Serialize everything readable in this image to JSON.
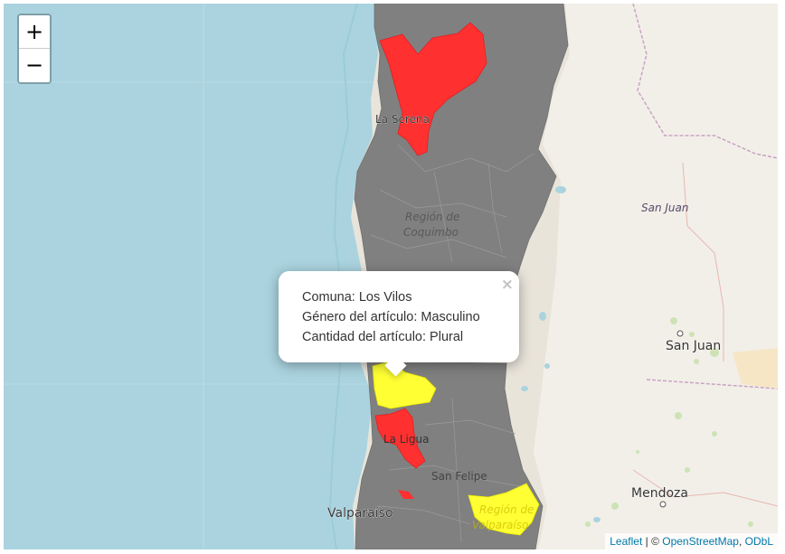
{
  "map": {
    "zoom_in_label": "+",
    "zoom_out_label": "−",
    "labels": {
      "la_serena": "La Serena",
      "region_coquimbo_1": "Región de",
      "region_coquimbo_2": "Coquimbo",
      "san_juan_region": "San Juan",
      "san_juan_city": "San Juan",
      "la_ligua": "La Ligua",
      "san_felipe": "San Felipe",
      "valparaiso": "Valparaíso",
      "mendoza": "Mendoza",
      "region_valparaiso_1": "Región de",
      "region_valparaiso_2": "Valparaíso"
    },
    "colors": {
      "ocean": "#aad3df",
      "land": "#f2efe9",
      "choropleth_default": "#808080",
      "choropleth_red": "#ff3030",
      "choropleth_yellow": "#ffff33"
    }
  },
  "popup": {
    "line1": "Comuna: Los Vilos",
    "line2": "Género del artículo: Masculino",
    "line3": "Cantidad del artículo: Plural",
    "close_label": "×"
  },
  "attribution": {
    "leaflet": "Leaflet",
    "separator": " | © ",
    "osm": "OpenStreetMap",
    "comma": ", ",
    "odbl": "ODbL"
  }
}
